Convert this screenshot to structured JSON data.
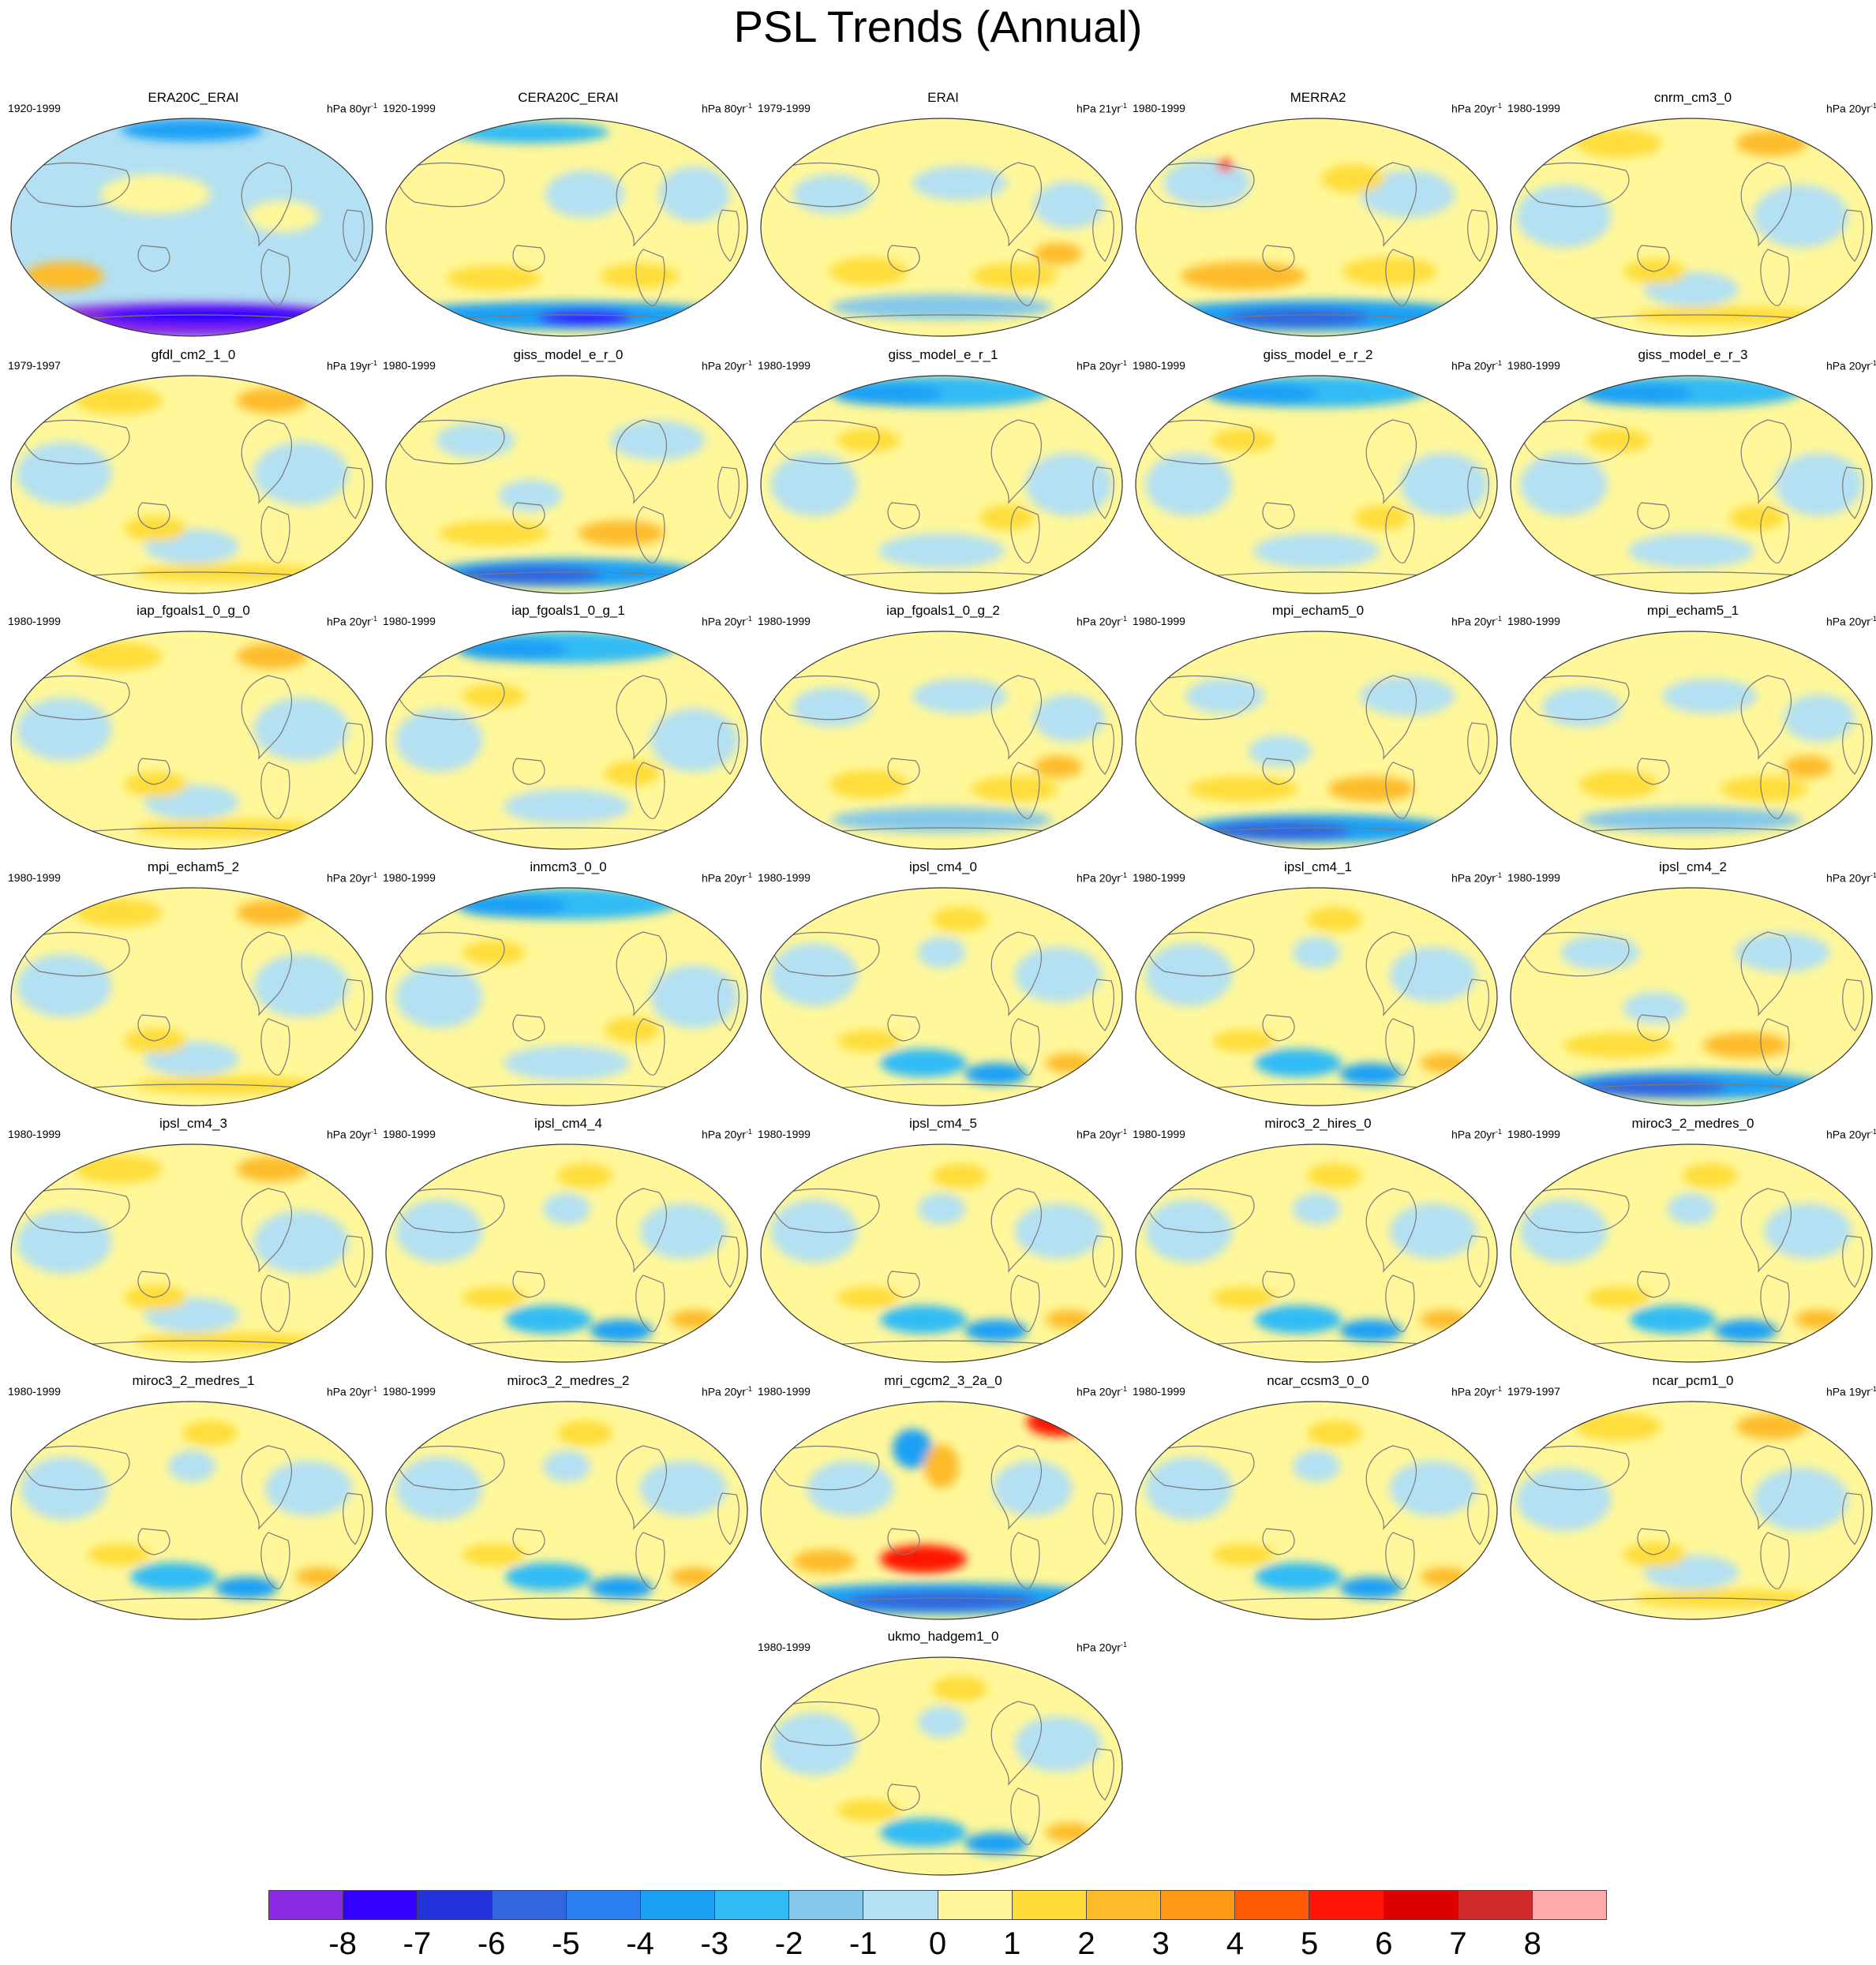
{
  "title": "PSL Trends (Annual)",
  "colors": {
    "land_outline": "#7a7a7a",
    "map_border": "#333333",
    "palette": [
      "#8a2be2",
      "#3300ff",
      "#2233dd",
      "#3366dd",
      "#2a7ff0",
      "#1aa0f5",
      "#33bbf5",
      "#85c8ea",
      "#b3e0f2",
      "#fff79a",
      "#fedd3a",
      "#fdbb2a",
      "#fd9915",
      "#ff5a05",
      "#ff1505",
      "#dd0000",
      "#d22a2a",
      "#ffaaaa"
    ]
  },
  "colorbar": {
    "labels": [
      "-8",
      "-7",
      "-6",
      "-5",
      "-4",
      "-3",
      "-2",
      "-1",
      "0",
      "1",
      "2",
      "3",
      "4",
      "5",
      "6",
      "7",
      "8"
    ]
  },
  "panels": [
    {
      "name": "ERA20C_ERAI",
      "period": "1920-1999",
      "units": "hPa 80yr",
      "exp": "-1",
      "pattern": "era20c"
    },
    {
      "name": "CERA20C_ERAI",
      "period": "1920-1999",
      "units": "hPa 80yr",
      "exp": "-1",
      "pattern": "cera20c"
    },
    {
      "name": "ERAI",
      "period": "1979-1999",
      "units": "hPa 21yr",
      "exp": "-1",
      "pattern": "warm-south"
    },
    {
      "name": "MERRA2",
      "period": "1980-1999",
      "units": "hPa 20yr",
      "exp": "-1",
      "pattern": "merra2"
    },
    {
      "name": "cnrm_cm3_0",
      "period": "1980-1999",
      "units": "hPa 20yr",
      "exp": "-1",
      "pattern": "warm-north"
    },
    {
      "name": "gfdl_cm2_1_0",
      "period": "1979-1997",
      "units": "hPa 19yr",
      "exp": "-1",
      "pattern": "warm-north"
    },
    {
      "name": "giss_model_e_r_0",
      "period": "1980-1999",
      "units": "hPa 20yr",
      "exp": "-1",
      "pattern": "cold-south"
    },
    {
      "name": "giss_model_e_r_1",
      "period": "1980-1999",
      "units": "hPa 20yr",
      "exp": "-1",
      "pattern": "cold-north"
    },
    {
      "name": "giss_model_e_r_2",
      "period": "1980-1999",
      "units": "hPa 20yr",
      "exp": "-1",
      "pattern": "cold-north"
    },
    {
      "name": "giss_model_e_r_3",
      "period": "1980-1999",
      "units": "hPa 20yr",
      "exp": "-1",
      "pattern": "cold-north"
    },
    {
      "name": "iap_fgoals1_0_g_0",
      "period": "1980-1999",
      "units": "hPa 20yr",
      "exp": "-1",
      "pattern": "warm-north"
    },
    {
      "name": "iap_fgoals1_0_g_1",
      "period": "1980-1999",
      "units": "hPa 20yr",
      "exp": "-1",
      "pattern": "cold-north"
    },
    {
      "name": "iap_fgoals1_0_g_2",
      "period": "1980-1999",
      "units": "hPa 20yr",
      "exp": "-1",
      "pattern": "warm-south"
    },
    {
      "name": "mpi_echam5_0",
      "period": "1980-1999",
      "units": "hPa 20yr",
      "exp": "-1",
      "pattern": "cold-south"
    },
    {
      "name": "mpi_echam5_1",
      "period": "1980-1999",
      "units": "hPa 20yr",
      "exp": "-1",
      "pattern": "warm-south"
    },
    {
      "name": "mpi_echam5_2",
      "period": "1980-1999",
      "units": "hPa 20yr",
      "exp": "-1",
      "pattern": "warm-north"
    },
    {
      "name": "inmcm3_0_0",
      "period": "1980-1999",
      "units": "hPa 20yr",
      "exp": "-1",
      "pattern": "cold-north"
    },
    {
      "name": "ipsl_cm4_0",
      "period": "1980-1999",
      "units": "hPa 20yr",
      "exp": "-1",
      "pattern": "mixed"
    },
    {
      "name": "ipsl_cm4_1",
      "period": "1980-1999",
      "units": "hPa 20yr",
      "exp": "-1",
      "pattern": "mixed"
    },
    {
      "name": "ipsl_cm4_2",
      "period": "1980-1999",
      "units": "hPa 20yr",
      "exp": "-1",
      "pattern": "cold-south"
    },
    {
      "name": "ipsl_cm4_3",
      "period": "1980-1999",
      "units": "hPa 20yr",
      "exp": "-1",
      "pattern": "warm-north"
    },
    {
      "name": "ipsl_cm4_4",
      "period": "1980-1999",
      "units": "hPa 20yr",
      "exp": "-1",
      "pattern": "mixed"
    },
    {
      "name": "ipsl_cm4_5",
      "period": "1980-1999",
      "units": "hPa 20yr",
      "exp": "-1",
      "pattern": "mixed"
    },
    {
      "name": "miroc3_2_hires_0",
      "period": "1980-1999",
      "units": "hPa 20yr",
      "exp": "-1",
      "pattern": "mixed"
    },
    {
      "name": "miroc3_2_medres_0",
      "period": "1980-1999",
      "units": "hPa 20yr",
      "exp": "-1",
      "pattern": "mixed"
    },
    {
      "name": "miroc3_2_medres_1",
      "period": "1980-1999",
      "units": "hPa 20yr",
      "exp": "-1",
      "pattern": "mixed"
    },
    {
      "name": "miroc3_2_medres_2",
      "period": "1980-1999",
      "units": "hPa 20yr",
      "exp": "-1",
      "pattern": "mixed"
    },
    {
      "name": "mri_cgcm2_3_2a_0",
      "period": "1980-1999",
      "units": "hPa 20yr",
      "exp": "-1",
      "pattern": "mri"
    },
    {
      "name": "ncar_ccsm3_0_0",
      "period": "1980-1999",
      "units": "hPa 20yr",
      "exp": "-1",
      "pattern": "mixed"
    },
    {
      "name": "ncar_pcm1_0",
      "period": "1979-1997",
      "units": "hPa 19yr",
      "exp": "-1",
      "pattern": "warm-north"
    },
    {
      "name": "ukmo_hadgem1_0",
      "period": "1980-1999",
      "units": "hPa 20yr",
      "exp": "-1",
      "pattern": "mixed"
    }
  ]
}
